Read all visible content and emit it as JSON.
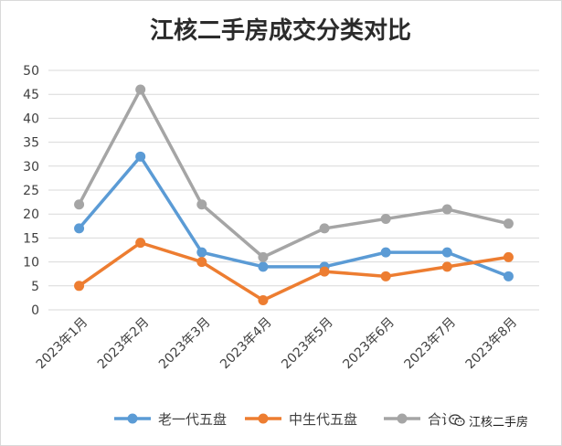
{
  "chart_data": {
    "type": "line",
    "title": "江核二手房成交分类对比",
    "categories": [
      "2023年1月",
      "2023年2月",
      "2023年3月",
      "2023年4月",
      "2023年5月",
      "2023年6月",
      "2023年7月",
      "2023年8月"
    ],
    "ylim": [
      0,
      50
    ],
    "yticks": [
      0,
      5,
      10,
      15,
      20,
      25,
      30,
      35,
      40,
      45,
      50
    ],
    "grid": true,
    "legend_position": "bottom",
    "series": [
      {
        "name": "老一代五盘",
        "color": "#5b9bd5",
        "values": [
          17,
          32,
          12,
          9,
          9,
          12,
          12,
          7
        ]
      },
      {
        "name": "中生代五盘",
        "color": "#ed7d31",
        "values": [
          5,
          14,
          10,
          2,
          8,
          7,
          9,
          11
        ]
      },
      {
        "name": "合计",
        "color": "#a5a5a5",
        "values": [
          22,
          46,
          22,
          11,
          17,
          19,
          21,
          18
        ]
      }
    ]
  },
  "watermark": {
    "text": "江核二手房",
    "icon": "wechat-icon"
  }
}
